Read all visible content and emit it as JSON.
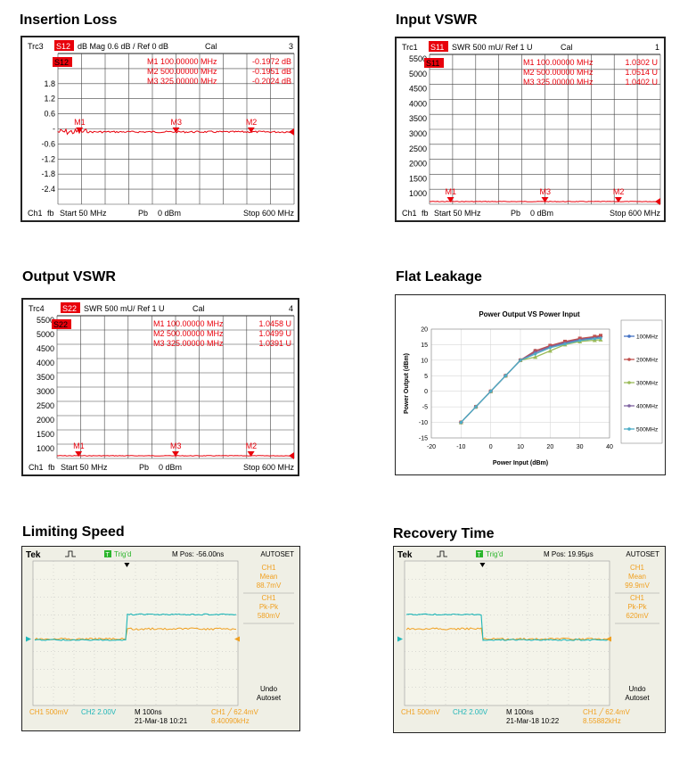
{
  "sections": {
    "insertion_loss": "Insertion Loss",
    "input_vswr": "Input VSWR",
    "output_vswr": "Output VSWR",
    "flat_leakage": "Flat Leakage",
    "limiting_speed": "Limiting Speed",
    "recovery_time": "Recovery Time"
  },
  "vna_insertion": {
    "trace_id": "Trc3",
    "param": "S12",
    "format": "dB Mag",
    "scale": "0.6 dB /",
    "ref": "Ref 0 dB",
    "cal": "Cal",
    "trace_num": "3",
    "y_ticks": [
      "1.8",
      "1.2",
      "0.6",
      "-",
      "-0.6",
      "-1.2",
      "-1.8",
      "-2.4"
    ],
    "markers": [
      {
        "label": "M1",
        "freq": "100.00000",
        "unit": "MHz",
        "value": "-0.1972 dB"
      },
      {
        "label": "M2",
        "freq": "500.00000",
        "unit": "MHz",
        "value": "-0.1951 dB"
      },
      {
        "label": "M3",
        "freq": "325.00000",
        "unit": "MHz",
        "value": "-0.2024 dB"
      }
    ],
    "footer": {
      "ch": "Ch1",
      "fb": "fb",
      "start": "Start 50 MHz",
      "pb": "Pb",
      "power": "0 dBm",
      "stop": "Stop 600 MHz"
    }
  },
  "vna_input": {
    "trace_id": "Trc1",
    "param": "S11",
    "format": "SWR",
    "scale": "500 mU/",
    "ref": "Ref 1 U",
    "cal": "Cal",
    "trace_num": "1",
    "y_ticks": [
      "5500",
      "5000",
      "4500",
      "4000",
      "3500",
      "3000",
      "2500",
      "2000",
      "1500",
      "1000"
    ],
    "markers": [
      {
        "label": "M1",
        "freq": "100.00000",
        "unit": "MHz",
        "value": "1.0302 U"
      },
      {
        "label": "M2",
        "freq": "500.00000",
        "unit": "MHz",
        "value": "1.0514 U"
      },
      {
        "label": "M3",
        "freq": "325.00000",
        "unit": "MHz",
        "value": "1.0402 U"
      }
    ],
    "footer": {
      "ch": "Ch1",
      "fb": "fb",
      "start": "Start 50 MHz",
      "pb": "Pb",
      "power": "0 dBm",
      "stop": "Stop 600 MHz"
    }
  },
  "vna_output": {
    "trace_id": "Trc4",
    "param": "S22",
    "format": "SWR",
    "scale": "500 mU/",
    "ref": "Ref 1 U",
    "cal": "Cal",
    "trace_num": "4",
    "y_ticks": [
      "5500",
      "5000",
      "4500",
      "4000",
      "3500",
      "3000",
      "2500",
      "2000",
      "1500",
      "1000"
    ],
    "markers": [
      {
        "label": "M1",
        "freq": "100.00000",
        "unit": "MHz",
        "value": "1.0458 U"
      },
      {
        "label": "M2",
        "freq": "500.00000",
        "unit": "MHz",
        "value": "1.0499 U"
      },
      {
        "label": "M3",
        "freq": "325.00000",
        "unit": "MHz",
        "value": "1.0391 U"
      }
    ],
    "footer": {
      "ch": "Ch1",
      "fb": "fb",
      "start": "Start 50 MHz",
      "pb": "Pb",
      "power": "0 dBm",
      "stop": "Stop 600 MHz"
    }
  },
  "chart_data": {
    "type": "line",
    "title": "Power Output VS Power Input",
    "xlabel": "Power Input (dBm)",
    "ylabel": "Power Output (dBm)",
    "xlim": [
      -20,
      40
    ],
    "ylim": [
      -15,
      20
    ],
    "x_ticks": [
      "-20",
      "-10",
      "0",
      "10",
      "20",
      "30",
      "40"
    ],
    "y_ticks": [
      "20",
      "15",
      "10",
      "5",
      "0",
      "-5",
      "-10",
      "-15"
    ],
    "grid": true,
    "legend_position": "right",
    "x": [
      -10,
      -5,
      0,
      5,
      10,
      15,
      20,
      25,
      30,
      35,
      37
    ],
    "series": [
      {
        "name": "100MHz",
        "color": "#4472c4",
        "marker": "diamond",
        "values": [
          -10,
          -5,
          0,
          5,
          10,
          13,
          14.5,
          15.7,
          16.7,
          17.3,
          17.6
        ]
      },
      {
        "name": "200MHz",
        "color": "#c0504d",
        "marker": "square",
        "values": [
          -10,
          -5,
          0,
          5,
          10,
          13,
          14.7,
          16,
          17,
          17.6,
          17.9
        ]
      },
      {
        "name": "300MHz",
        "color": "#9bbb59",
        "marker": "triangle",
        "values": [
          -10,
          -5,
          0,
          5,
          10,
          11,
          13,
          15,
          16,
          16.4,
          16.6
        ]
      },
      {
        "name": "400MHz",
        "color": "#8064a2",
        "marker": "x",
        "values": [
          -10,
          -5,
          0,
          5,
          10,
          12.5,
          14.3,
          15.5,
          16.5,
          17,
          17.2
        ]
      },
      {
        "name": "500MHz",
        "color": "#4bacc6",
        "marker": "asterisk",
        "values": [
          -10,
          -5,
          0,
          5,
          10,
          12,
          14,
          15.2,
          16.3,
          16.9,
          17.1
        ]
      }
    ]
  },
  "scope_limiting": {
    "brand": "Tek",
    "trig": "Trig'd",
    "mpos": "M Pos: -56.00ns",
    "autoset": "AUTOSET",
    "ch1_label": "CH1",
    "mean_label": "Mean",
    "mean_value": "88.7mV",
    "pkpk_label": "Pk-Pk",
    "pkpk_value": "580mV",
    "undo": "Undo",
    "autoset2": "Autoset",
    "ch1_scale": "CH1  500mV",
    "ch2_scale": "CH2  2.00V",
    "timebase": "M 100ns",
    "date": "21-Mar-18 10:21",
    "trigger": "CH1 ╱ 62.4mV",
    "freq": "8.40090kHz",
    "cyan_step_frac": 0.38,
    "direction": "rise"
  },
  "scope_recovery": {
    "brand": "Tek",
    "trig": "Trig'd",
    "mpos": "M Pos: 19.95μs",
    "autoset": "AUTOSET",
    "ch1_label": "CH1",
    "mean_label": "Mean",
    "mean_value": "99.9mV",
    "pkpk_label": "Pk-Pk",
    "pkpk_value": "620mV",
    "undo": "Undo",
    "autoset2": "Autoset",
    "ch1_scale": "CH1  500mV",
    "ch2_scale": "CH2  2.00V",
    "timebase": "M 100ns",
    "date": "21-Mar-18 10:22",
    "trigger": "CH1 ╱ 62.4mV",
    "freq": "8.55882kHz",
    "cyan_step_frac": 0.38,
    "direction": "fall"
  },
  "colors": {
    "trace_red": "#e8000b",
    "scope_cyan": "#1fb6b8",
    "scope_orange": "#f0a020",
    "scope_green": "#2bb52b",
    "scope_bg": "#f4f4ea",
    "scope_side": "#efefe5"
  }
}
